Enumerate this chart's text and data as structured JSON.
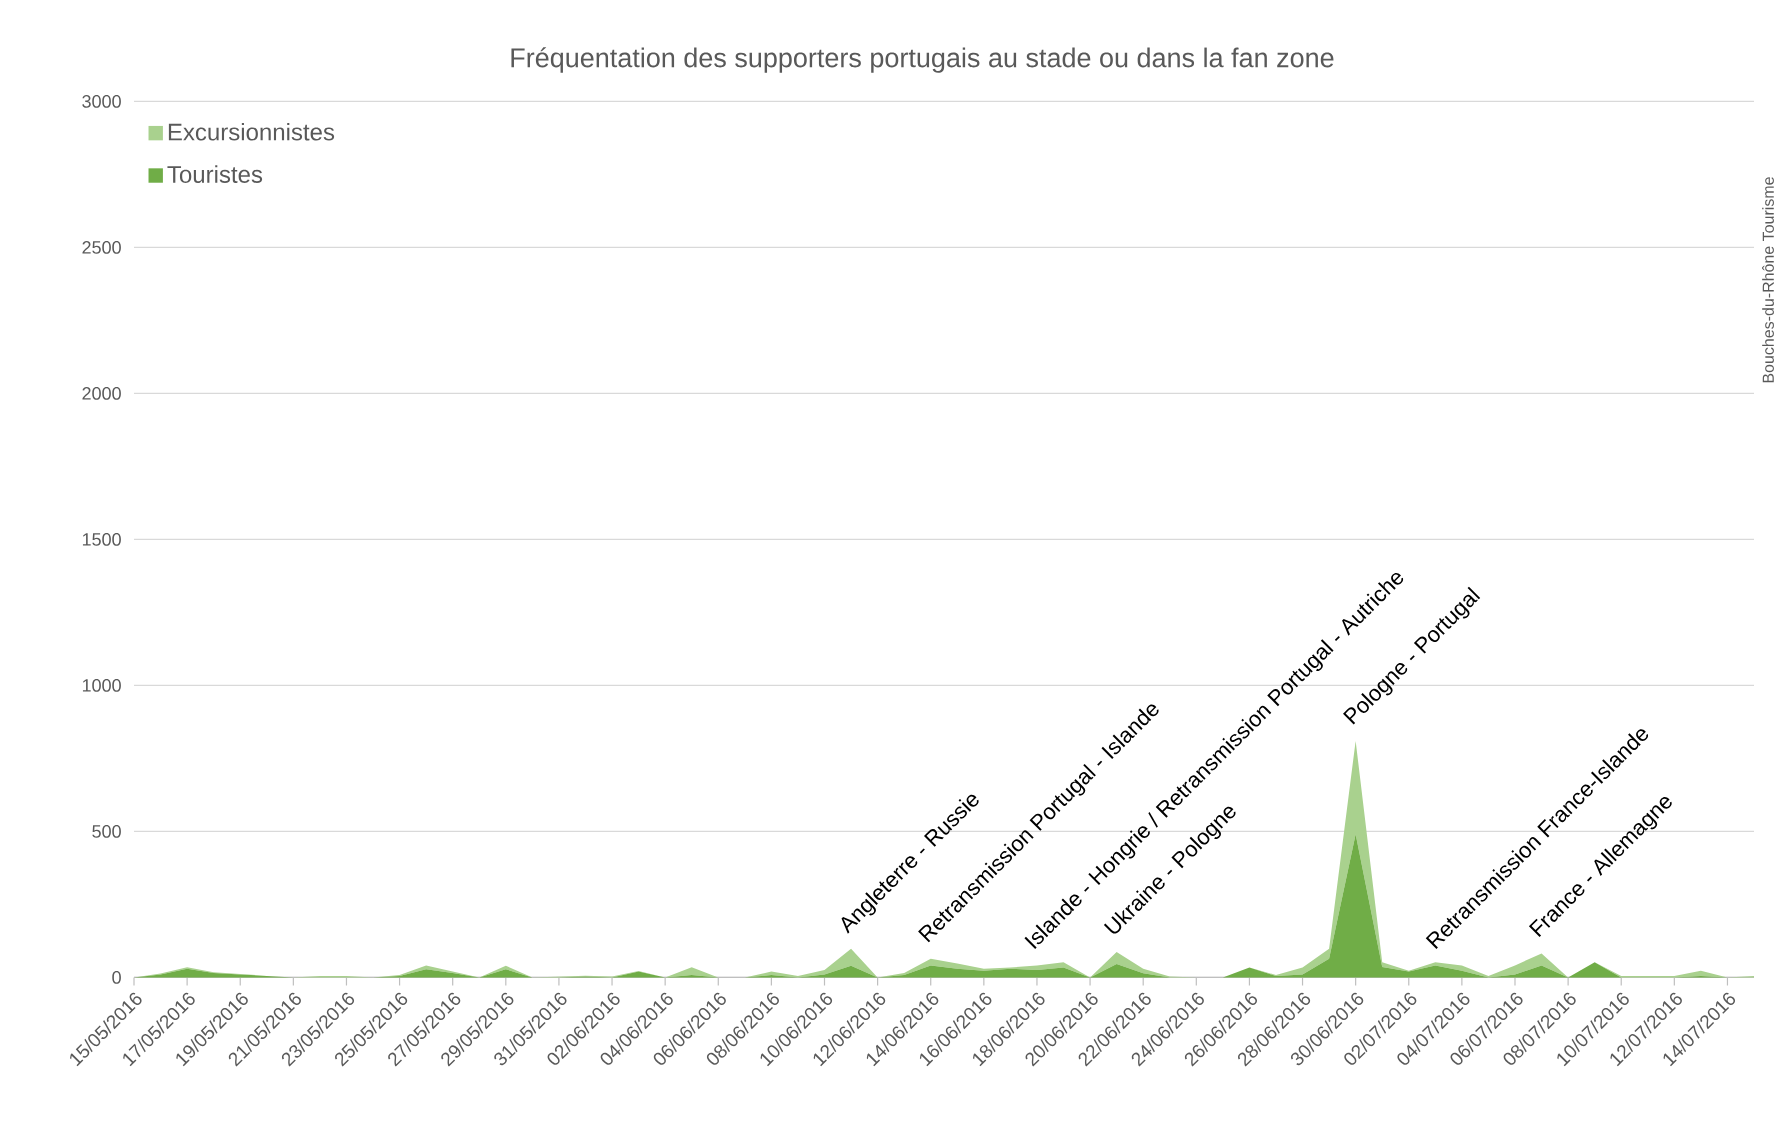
{
  "chart_data": {
    "type": "area",
    "title": "Fréquentation des supporters portugais au stade ou dans la fan zone",
    "stacked": true,
    "grid": "y",
    "legend": "top left",
    "x": [
      "2016-05-15",
      "2016-05-16",
      "2016-05-17",
      "2016-05-18",
      "2016-05-19",
      "2016-05-20",
      "2016-05-21",
      "2016-05-22",
      "2016-05-23",
      "2016-05-24",
      "2016-05-25",
      "2016-05-26",
      "2016-05-27",
      "2016-05-28",
      "2016-05-29",
      "2016-05-30",
      "2016-05-31",
      "2016-06-01",
      "2016-06-02",
      "2016-06-03",
      "2016-06-04",
      "2016-06-05",
      "2016-06-06",
      "2016-06-07",
      "2016-06-08",
      "2016-06-09",
      "2016-06-10",
      "2016-06-11",
      "2016-06-12",
      "2016-06-13",
      "2016-06-14",
      "2016-06-15",
      "2016-06-16",
      "2016-06-17",
      "2016-06-18",
      "2016-06-19",
      "2016-06-20",
      "2016-06-21",
      "2016-06-22",
      "2016-06-23",
      "2016-06-24",
      "2016-06-25",
      "2016-06-26",
      "2016-06-27",
      "2016-06-28",
      "2016-06-29",
      "2016-06-30",
      "2016-07-01",
      "2016-07-02",
      "2016-07-03",
      "2016-07-04",
      "2016-07-05",
      "2016-07-06",
      "2016-07-07",
      "2016-07-08",
      "2016-07-09",
      "2016-07-10",
      "2016-07-11",
      "2016-07-12",
      "2016-07-13",
      "2016-07-14",
      "2016-07-15"
    ],
    "series": [
      {
        "name": "Touristes",
        "color": "#70ad47",
        "values": [
          0,
          10,
          30,
          15,
          10,
          5,
          0,
          0,
          0,
          0,
          5,
          28,
          15,
          0,
          28,
          0,
          0,
          3,
          0,
          20,
          0,
          8,
          0,
          0,
          8,
          0,
          10,
          40,
          0,
          8,
          41,
          30,
          23,
          30,
          25,
          34,
          0,
          46,
          14,
          0,
          0,
          0,
          34,
          5,
          10,
          64,
          490,
          36,
          20,
          41,
          23,
          0,
          10,
          41,
          0,
          52,
          0,
          0,
          0,
          5,
          0,
          0
        ]
      },
      {
        "name": "Excursionnistes",
        "color": "#a9d18e",
        "values": [
          0,
          3,
          5,
          3,
          2,
          0,
          0,
          5,
          5,
          0,
          3,
          13,
          5,
          0,
          12,
          0,
          3,
          3,
          3,
          2,
          0,
          27,
          0,
          0,
          12,
          5,
          15,
          58,
          0,
          7,
          23,
          18,
          7,
          4,
          16,
          18,
          0,
          41,
          16,
          3,
          0,
          0,
          0,
          3,
          24,
          34,
          320,
          16,
          3,
          11,
          18,
          5,
          31,
          41,
          0,
          0,
          5,
          5,
          5,
          18,
          0,
          5
        ]
      }
    ],
    "xlim": [
      "2016-05-15",
      "2016-07-15"
    ],
    "xticks": [
      {
        "value": "2016-05-15",
        "label": "15/05/2016"
      },
      {
        "value": "2016-05-17",
        "label": "17/05/2016"
      },
      {
        "value": "2016-05-19",
        "label": "19/05/2016"
      },
      {
        "value": "2016-05-21",
        "label": "21/05/2016"
      },
      {
        "value": "2016-05-23",
        "label": "23/05/2016"
      },
      {
        "value": "2016-05-25",
        "label": "25/05/2016"
      },
      {
        "value": "2016-05-27",
        "label": "27/05/2016"
      },
      {
        "value": "2016-05-29",
        "label": "29/05/2016"
      },
      {
        "value": "2016-05-31",
        "label": "31/05/2016"
      },
      {
        "value": "2016-06-02",
        "label": "02/06/2016"
      },
      {
        "value": "2016-06-04",
        "label": "04/06/2016"
      },
      {
        "value": "2016-06-06",
        "label": "06/06/2016"
      },
      {
        "value": "2016-06-08",
        "label": "08/06/2016"
      },
      {
        "value": "2016-06-10",
        "label": "10/06/2016"
      },
      {
        "value": "2016-06-12",
        "label": "12/06/2016"
      },
      {
        "value": "2016-06-14",
        "label": "14/06/2016"
      },
      {
        "value": "2016-06-16",
        "label": "16/06/2016"
      },
      {
        "value": "2016-06-18",
        "label": "18/06/2016"
      },
      {
        "value": "2016-06-20",
        "label": "20/06/2016"
      },
      {
        "value": "2016-06-22",
        "label": "22/06/2016"
      },
      {
        "value": "2016-06-24",
        "label": "24/06/2016"
      },
      {
        "value": "2016-06-26",
        "label": "26/06/2016"
      },
      {
        "value": "2016-06-28",
        "label": "28/06/2016"
      },
      {
        "value": "2016-06-30",
        "label": "30/06/2016"
      },
      {
        "value": "2016-07-02",
        "label": "02/07/2016"
      },
      {
        "value": "2016-07-04",
        "label": "04/07/2016"
      },
      {
        "value": "2016-07-06",
        "label": "06/07/2016"
      },
      {
        "value": "2016-07-08",
        "label": "08/07/2016"
      },
      {
        "value": "2016-07-10",
        "label": "10/07/2016"
      },
      {
        "value": "2016-07-12",
        "label": "12/07/2016"
      },
      {
        "value": "2016-07-14",
        "label": "14/07/2016"
      }
    ],
    "ylim": [
      0,
      3000
    ],
    "yticks": [
      0,
      500,
      1000,
      1500,
      2000,
      2500,
      3000
    ],
    "annotations": [
      {
        "text": "Angleterre - Russie",
        "x": "2016-06-11",
        "y": 98
      },
      {
        "text": "Retransmission Portugal - Islande",
        "x": "2016-06-14",
        "y": 64
      },
      {
        "text": "Islande - Hongrie / Retransmission Portugal - Autriche",
        "x": "2016-06-18",
        "y": 41
      },
      {
        "text": "Ukraine - Pologne",
        "x": "2016-06-21",
        "y": 87
      },
      {
        "text": "Pologne - Portugal",
        "x": "2016-06-30",
        "y": 810
      },
      {
        "text": "Retransmission France-Islande",
        "x": "2016-07-03",
        "y": 52
      },
      {
        "text": "France - Allemagne",
        "x": "2016-07-07",
        "y": 82
      },
      "Bouches-du-Rhône Tourisme"
    ]
  }
}
